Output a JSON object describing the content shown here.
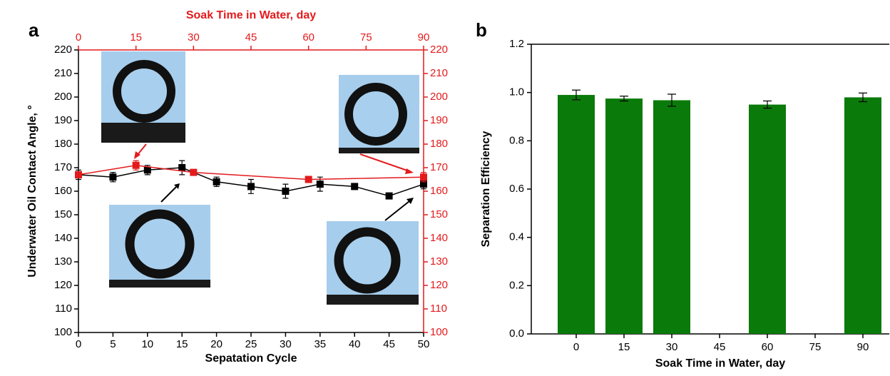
{
  "chart_data": [
    {
      "type": "line",
      "panel_label": "a",
      "x_label": "Sepatation Cycle",
      "x2_label": "Soak Time in Water, day",
      "y_label": "Underwater Oil Contact Angle, °",
      "xlim": [
        0,
        50
      ],
      "xticks": [
        0,
        5,
        10,
        15,
        20,
        25,
        30,
        35,
        40,
        45,
        50
      ],
      "x2lim": [
        0,
        90
      ],
      "x2ticks": [
        0,
        15,
        30,
        45,
        60,
        75,
        90
      ],
      "ylim": [
        100,
        220
      ],
      "yticks": [
        100,
        110,
        120,
        130,
        140,
        150,
        160,
        170,
        180,
        190,
        200,
        210,
        220
      ],
      "y2lim": [
        100,
        220
      ],
      "y2ticks": [
        100,
        110,
        120,
        130,
        140,
        150,
        160,
        170,
        180,
        190,
        200,
        210,
        220
      ],
      "x2_color": "#e31a1c",
      "series": [
        {
          "color": "#000000",
          "x": [
            0,
            5,
            10,
            15,
            20,
            25,
            30,
            35,
            40,
            45,
            50
          ],
          "values": [
            167,
            166,
            169,
            170,
            164,
            162,
            160,
            163,
            162,
            158,
            163
          ],
          "errors": [
            2,
            2,
            2,
            3,
            2,
            3,
            3,
            3,
            1,
            1,
            2
          ]
        },
        {
          "color": "#e31a1c",
          "axis": "y2",
          "xaxis": "x2",
          "x": [
            0,
            15,
            30,
            60,
            90
          ],
          "values": [
            167,
            171,
            168,
            165,
            166
          ],
          "errors": [
            1,
            2,
            1,
            1,
            2
          ]
        }
      ]
    },
    {
      "type": "bar",
      "panel_label": "b",
      "x_label": "Soak Time in Water, day",
      "y_label": "Separation Efficiency",
      "categories": [
        "0",
        "15",
        "30",
        "45",
        "60",
        "75",
        "90"
      ],
      "values": [
        0.99,
        0.975,
        0.968,
        null,
        0.95,
        null,
        0.98
      ],
      "errors": [
        0.02,
        0.01,
        0.025,
        null,
        0.015,
        null,
        0.018
      ],
      "color": "#0a7a0a",
      "ylim": [
        0,
        1.2
      ],
      "yticks": [
        {
          "value": 0,
          "label": "0.0"
        },
        0.2,
        0.4,
        0.6,
        0.8,
        {
          "value": 1,
          "label": "1.0"
        },
        1.2
      ]
    }
  ]
}
